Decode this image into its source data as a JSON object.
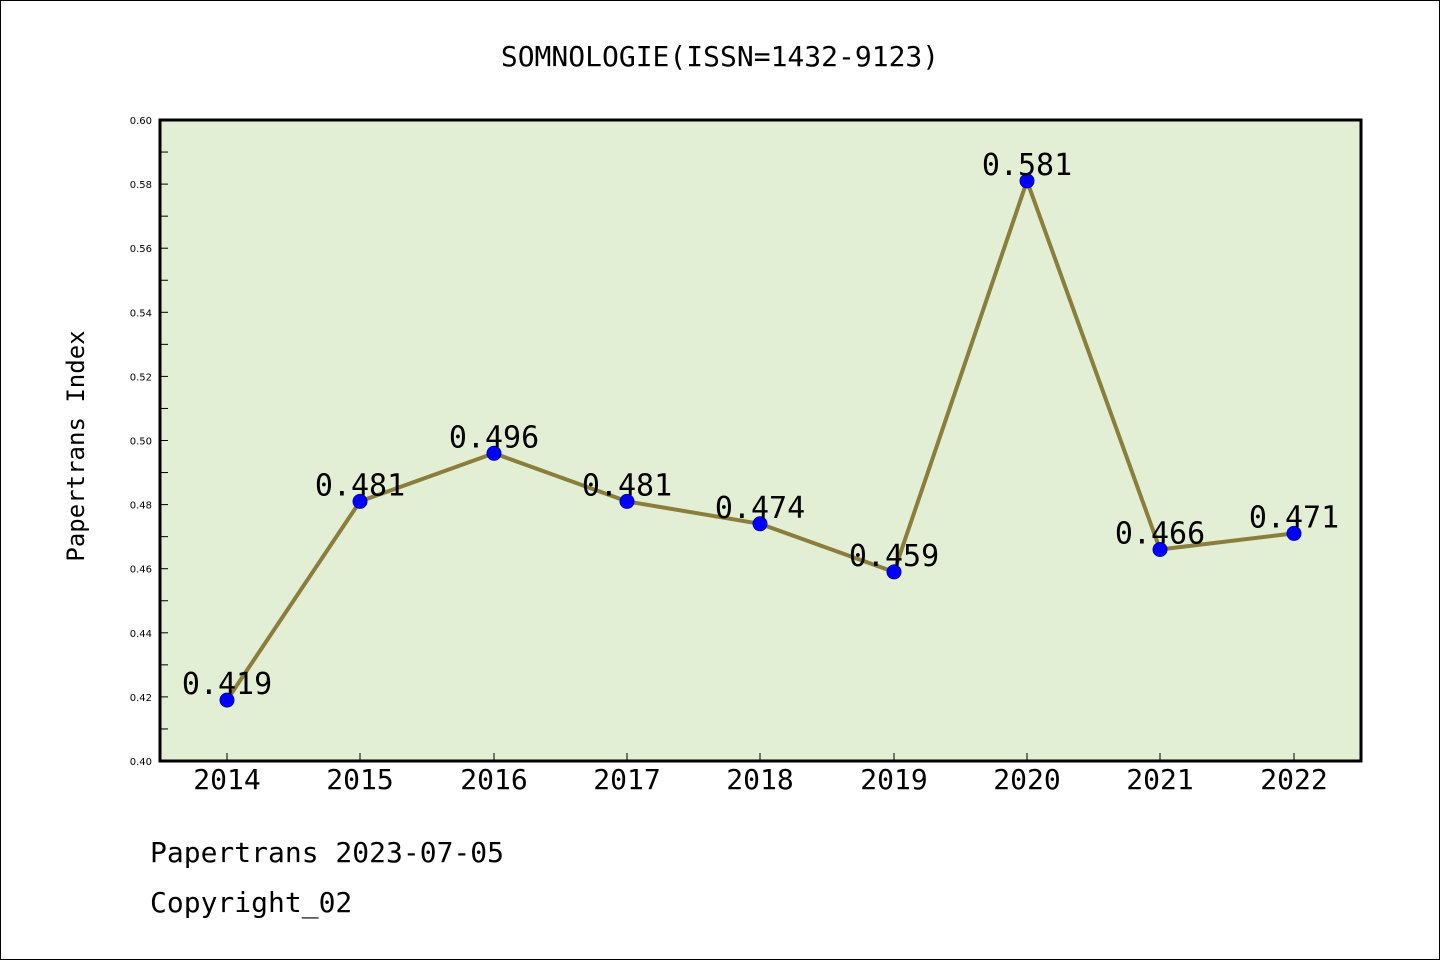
{
  "chart_data": {
    "type": "line",
    "title": "SOMNOLOGIE(ISSN=1432-9123)",
    "xlabel": "",
    "ylabel": "Papertrans Index",
    "categories": [
      "2014",
      "2015",
      "2016",
      "2017",
      "2018",
      "2019",
      "2020",
      "2021",
      "2022"
    ],
    "values": [
      0.419,
      0.481,
      0.496,
      0.481,
      0.474,
      0.459,
      0.581,
      0.466,
      0.471
    ],
    "data_labels": [
      "0.419",
      "0.481",
      "0.496",
      "0.481",
      "0.474",
      "0.459",
      "0.581",
      "0.466",
      "0.471"
    ],
    "ylim": [
      0.4,
      0.6
    ],
    "yticks": [
      "0.40",
      "0.42",
      "0.44",
      "0.46",
      "0.48",
      "0.50",
      "0.52",
      "0.54",
      "0.56",
      "0.58",
      "0.60"
    ],
    "grid": false,
    "colors": {
      "plot_background": "#e2efd4",
      "line": "#8b7d3a",
      "marker": "#0000ff"
    }
  },
  "footer": {
    "date_line": "Papertrans 2023-07-05",
    "copyright": "Copyright_02"
  }
}
